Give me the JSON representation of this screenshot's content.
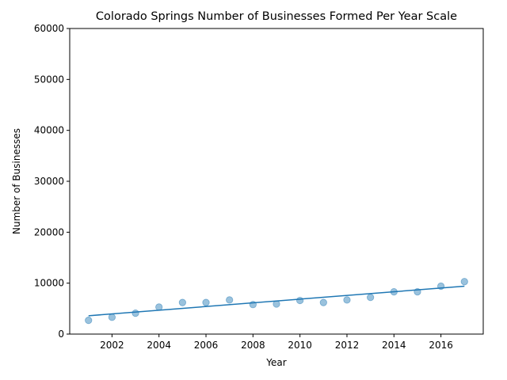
{
  "chart_data": {
    "type": "scatter",
    "title": "Colorado Springs Number of Businesses Formed Per Year Scale",
    "xlabel": "Year",
    "ylabel": "Number of Businesses",
    "xlim": [
      2000.2,
      2017.8
    ],
    "ylim": [
      0,
      60000
    ],
    "xticks": [
      "2002",
      "2004",
      "2006",
      "2008",
      "2010",
      "2012",
      "2014",
      "2016"
    ],
    "yticks": [
      "0",
      "10000",
      "20000",
      "30000",
      "40000",
      "50000",
      "60000"
    ],
    "grid": false,
    "legend": "none",
    "point_color": "#1f77b4",
    "line_color": "#1f77b4",
    "points": {
      "x": [
        2001,
        2002,
        2003,
        2004,
        2005,
        2006,
        2007,
        2008,
        2009,
        2010,
        2011,
        2012,
        2013,
        2014,
        2015,
        2016,
        2017
      ],
      "y": [
        2700,
        3300,
        4100,
        5300,
        6200,
        6200,
        6700,
        5800,
        5900,
        6600,
        6200,
        6700,
        7200,
        8300,
        8300,
        9400,
        10300
      ]
    },
    "trendline": {
      "x": [
        2001,
        2017
      ],
      "y": [
        3600,
        9400
      ]
    }
  }
}
